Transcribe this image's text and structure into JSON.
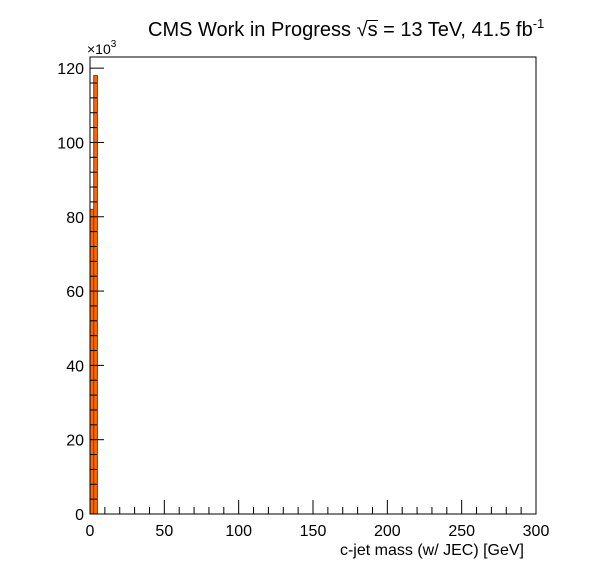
{
  "title": {
    "prefix": "CMS Work in Progress",
    "sqrt_symbol": "√",
    "sqrt_var": "s",
    "rest": " = 13 TeV, 41.5 fb",
    "superscript": "-1"
  },
  "chart_data": {
    "type": "bar",
    "xlabel": "c-jet mass (w/ JEC) [GeV]",
    "ylabel": "",
    "xlim": [
      0,
      300
    ],
    "ylim": [
      0,
      123000
    ],
    "y_multiplier_label": "×10",
    "y_multiplier_exponent": "3",
    "x_ticks": [
      0,
      50,
      100,
      150,
      200,
      250,
      300
    ],
    "y_ticks": [
      0,
      20,
      40,
      60,
      80,
      100,
      120
    ],
    "bin_width": 2.5,
    "bins": [
      {
        "x_low": 0,
        "x_high": 2.5,
        "value": 82000
      },
      {
        "x_low": 2.5,
        "x_high": 5,
        "value": 118000
      }
    ],
    "fill_color": "#ff6600",
    "edge_color": "#993300",
    "grid": false,
    "legend": "none"
  }
}
